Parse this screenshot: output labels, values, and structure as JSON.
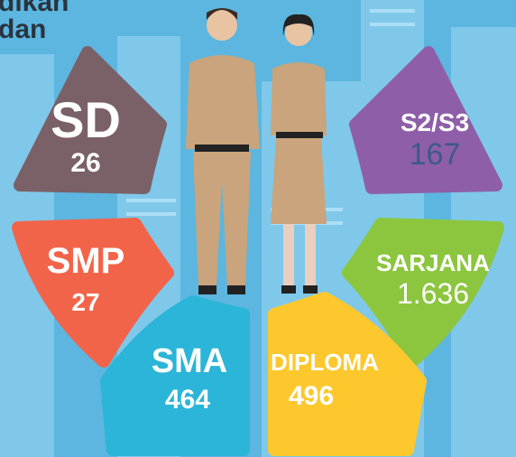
{
  "header": {
    "title_lines": [
      "dikan",
      "dan"
    ]
  },
  "segments": [
    {
      "label": "SD",
      "value": "26"
    },
    {
      "label": "S2/S3",
      "value": "167"
    },
    {
      "label": "SMP",
      "value": "27"
    },
    {
      "label": "SARJANA",
      "value": "1.636"
    },
    {
      "label": "SMA",
      "value": "464"
    },
    {
      "label": "DIPLOMA",
      "value": "496"
    }
  ]
}
